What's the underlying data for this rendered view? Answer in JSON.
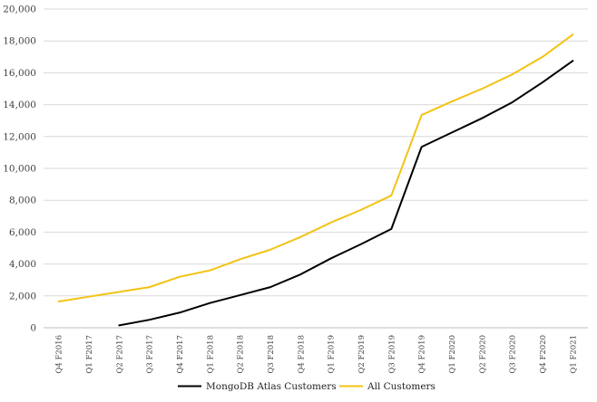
{
  "chart_data": {
    "type": "line",
    "title": "",
    "xlabel": "",
    "ylabel": "",
    "ylim": [
      0,
      20000
    ],
    "yticks": [
      0,
      2000,
      4000,
      6000,
      8000,
      10000,
      12000,
      14000,
      16000,
      18000,
      20000
    ],
    "ytick_labels": [
      "0",
      "2,000",
      "4,000",
      "6,000",
      "8,000",
      "10,000",
      "12,000",
      "14,000",
      "16,000",
      "18,000",
      "20,000"
    ],
    "grid": "horizontal",
    "legend_position": "bottom-center",
    "categories": [
      "Q4 F2016",
      "Q1 F2017",
      "Q2 F2017",
      "Q3 F2017",
      "Q4 F2017",
      "Q1 F2018",
      "Q2 F2018",
      "Q3 F2018",
      "Q4 F2018",
      "Q1 F2019",
      "Q2 F2019",
      "Q3 F2019",
      "Q4 F2019",
      "Q1 F2020",
      "Q2 F2020",
      "Q3 F2020",
      "Q4 F2020",
      "Q1 F2021"
    ],
    "series": [
      {
        "name": "MongoDB Atlas Customers",
        "color": "#000000",
        "values": [
          null,
          null,
          150,
          500,
          950,
          1550,
          2050,
          2550,
          3350,
          4350,
          5250,
          6200,
          11350,
          12250,
          13150,
          14150,
          15400,
          16750
        ]
      },
      {
        "name": "All Customers",
        "color": "#f2c314",
        "values": [
          1650,
          1950,
          2250,
          2550,
          3200,
          3600,
          4300,
          4900,
          5700,
          6600,
          7400,
          8300,
          13350,
          14200,
          15000,
          15900,
          17000,
          18400
        ]
      }
    ]
  }
}
